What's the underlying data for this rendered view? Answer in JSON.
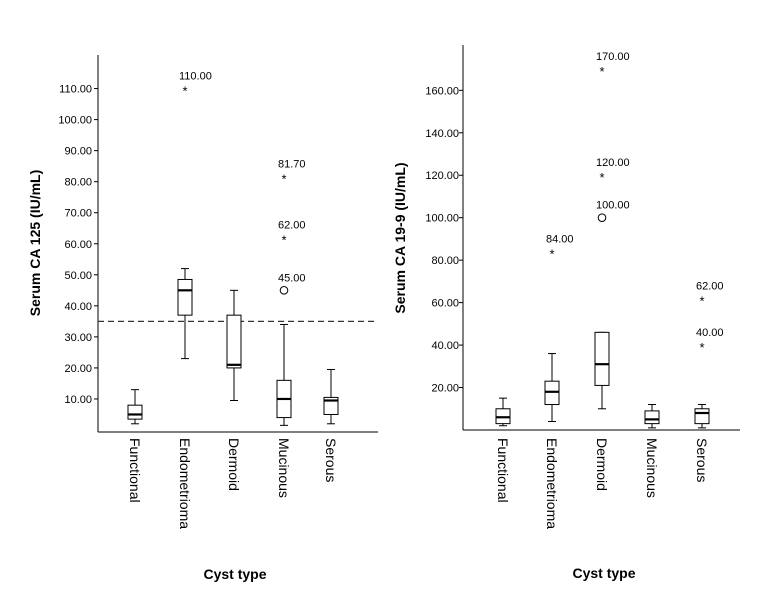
{
  "chart_data": [
    {
      "type": "box",
      "title": "",
      "ylabel": "Serum CA 125 (IU/mL)",
      "xlabel": "Cyst type",
      "ylim": [
        0,
        120
      ],
      "yticks": [
        10,
        20,
        30,
        40,
        50,
        60,
        70,
        80,
        90,
        100,
        110
      ],
      "yticklabels": [
        "10.00",
        "20.00",
        "30.00",
        "40.00",
        "50.00",
        "60.00",
        "70.00",
        "80.00",
        "90.00",
        "100.00",
        "110.00"
      ],
      "reference_line": 35,
      "categories": [
        "Functional",
        "Endometrioma",
        "Dermoid",
        "Mucinous",
        "Serous"
      ],
      "boxes": [
        {
          "category": "Functional",
          "whisker_low": 2,
          "q1": 3.5,
          "median": 5,
          "q3": 8,
          "whisker_high": 13
        },
        {
          "category": "Endometrioma",
          "whisker_low": 23,
          "q1": 37,
          "median": 45,
          "q3": 48.5,
          "whisker_high": 52
        },
        {
          "category": "Dermoid",
          "whisker_low": 9.5,
          "q1": 20,
          "median": 21,
          "q3": 37,
          "whisker_high": 45
        },
        {
          "category": "Mucinous",
          "whisker_low": 1.5,
          "q1": 4,
          "median": 10,
          "q3": 16,
          "whisker_high": 34
        },
        {
          "category": "Serous",
          "whisker_low": 2,
          "q1": 5,
          "median": 9.5,
          "q3": 10.5,
          "whisker_high": 19.5
        }
      ],
      "outliers": [
        {
          "category": "Endometrioma",
          "value": 110,
          "marker": "star",
          "label": "110.00"
        },
        {
          "category": "Mucinous",
          "value": 81.7,
          "marker": "star",
          "label": "81.70"
        },
        {
          "category": "Mucinous",
          "value": 62,
          "marker": "star",
          "label": "62.00"
        },
        {
          "category": "Mucinous",
          "value": 45,
          "marker": "circle",
          "label": "45.00"
        }
      ]
    },
    {
      "type": "box",
      "title": "",
      "ylabel": "Serum CA 19-9 (IU/mL)",
      "xlabel": "Cyst type",
      "ylim": [
        0,
        180
      ],
      "yticks": [
        20,
        40,
        60,
        80,
        100,
        120,
        140,
        160
      ],
      "yticklabels": [
        "20.00",
        "40.00",
        "60.00",
        "80.00",
        "100.00",
        "120.00",
        "140.00",
        "160.00"
      ],
      "categories": [
        "Functional",
        "Endometrioma",
        "Dermoid",
        "Mucinous",
        "Serous"
      ],
      "boxes": [
        {
          "category": "Functional",
          "whisker_low": 2,
          "q1": 3,
          "median": 6,
          "q3": 10,
          "whisker_high": 15
        },
        {
          "category": "Endometrioma",
          "whisker_low": 4,
          "q1": 12,
          "median": 18,
          "q3": 23,
          "whisker_high": 36
        },
        {
          "category": "Dermoid",
          "whisker_low": 10,
          "q1": 21,
          "median": 31,
          "q3": 46,
          "whisker_high": 46
        },
        {
          "category": "Mucinous",
          "whisker_low": 1,
          "q1": 3,
          "median": 5,
          "q3": 9,
          "whisker_high": 12
        },
        {
          "category": "Serous",
          "whisker_low": 1,
          "q1": 3,
          "median": 8,
          "q3": 10,
          "whisker_high": 12
        }
      ],
      "outliers": [
        {
          "category": "Dermoid",
          "value": 170,
          "marker": "star",
          "label": "170.00"
        },
        {
          "category": "Dermoid",
          "value": 120,
          "marker": "star",
          "label": "120.00"
        },
        {
          "category": "Dermoid",
          "value": 100,
          "marker": "circle",
          "label": "100.00"
        },
        {
          "category": "Endometrioma",
          "value": 84,
          "marker": "star",
          "label": "84.00"
        },
        {
          "category": "Serous",
          "value": 62,
          "marker": "star",
          "label": "62.00"
        },
        {
          "category": "Serous",
          "value": 40,
          "marker": "star",
          "label": "40.00"
        }
      ]
    }
  ]
}
